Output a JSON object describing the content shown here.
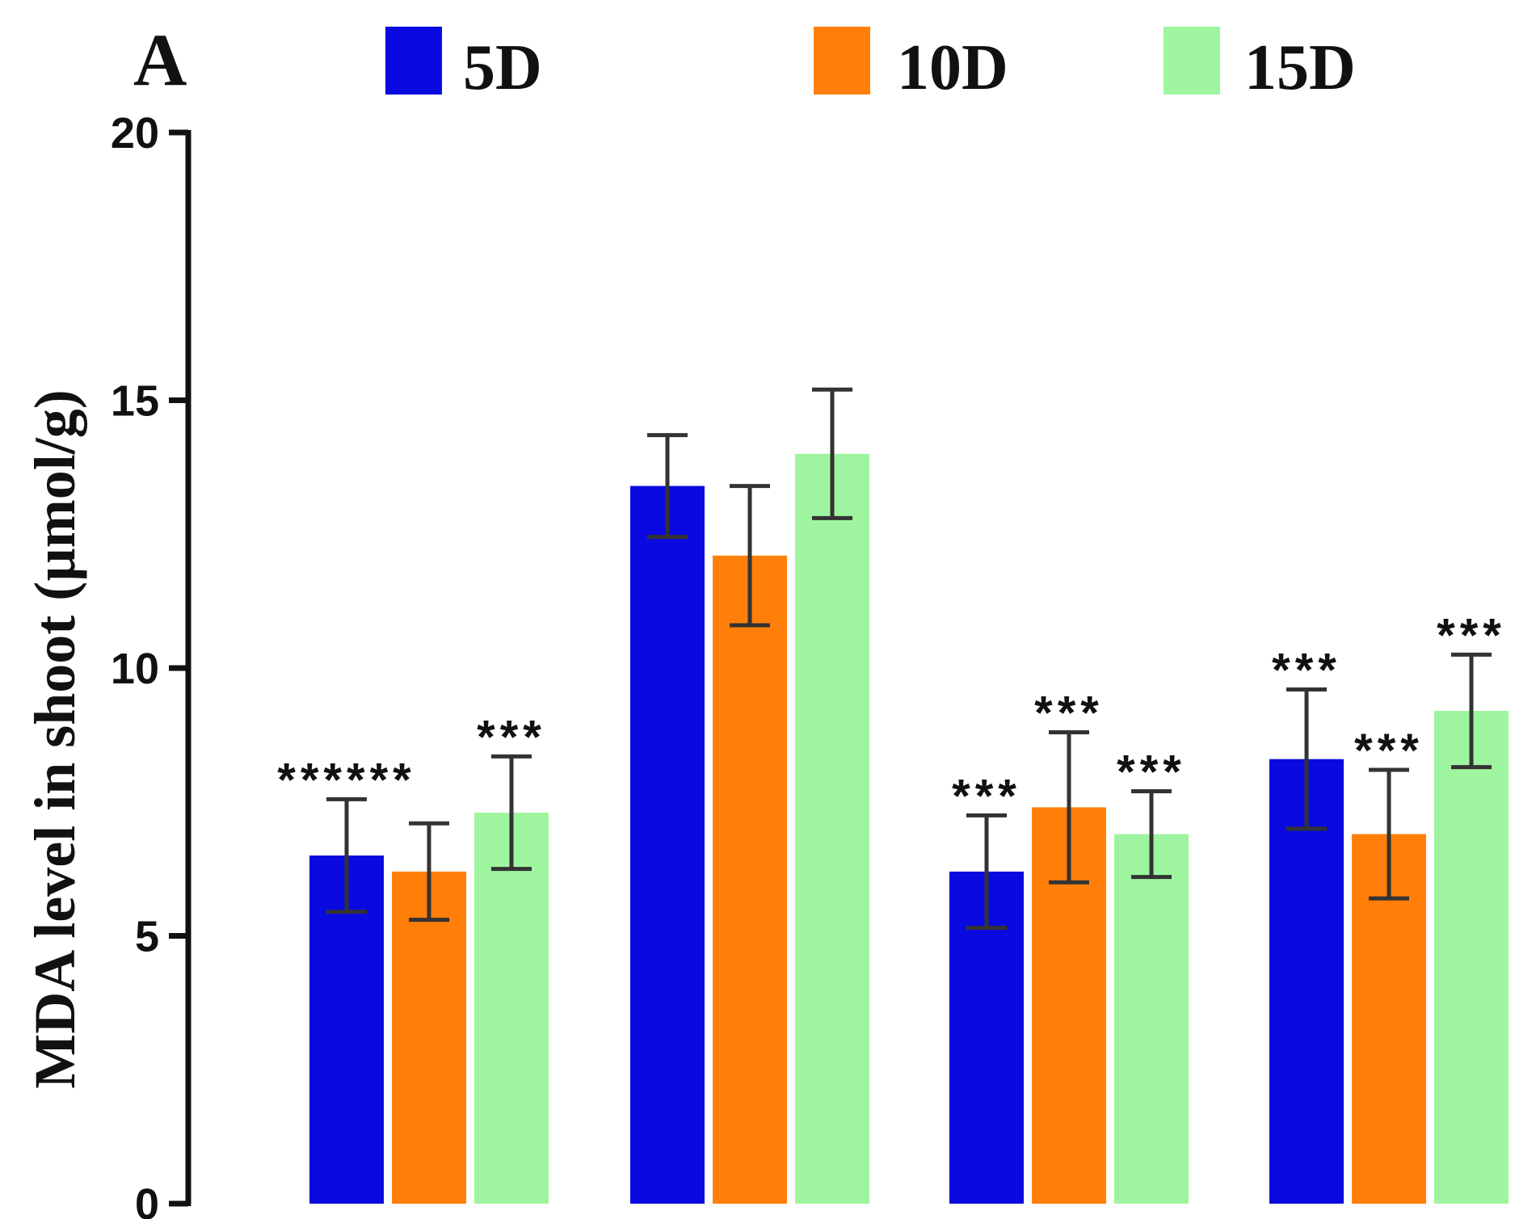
{
  "panel_label": "A",
  "chart_data": {
    "type": "bar",
    "title": "",
    "xlabel": "",
    "ylabel": "MDA level in shoot (µmol/g)",
    "ylim": [
      0,
      20
    ],
    "yticks": [
      0,
      5,
      10,
      15,
      20
    ],
    "ytick_labels": [
      "0",
      "5",
      "10",
      "15",
      "20"
    ],
    "categories": [
      "",
      "",
      "",
      ""
    ],
    "legend_position": "top",
    "series": [
      {
        "name": "5D",
        "color": "#0a0ae0",
        "values": [
          6.5,
          13.4,
          6.2,
          8.3
        ],
        "errors": [
          1.05,
          0.95,
          1.05,
          1.3
        ],
        "annotations": [
          "******",
          "",
          "***",
          "***"
        ]
      },
      {
        "name": "10D",
        "color": "#ff7f0a",
        "values": [
          6.2,
          12.1,
          7.4,
          6.9
        ],
        "errors": [
          0.9,
          1.3,
          1.4,
          1.2
        ],
        "annotations": [
          "",
          "",
          "***",
          "***"
        ]
      },
      {
        "name": "15D",
        "color": "#9ff59f",
        "values": [
          7.3,
          14.0,
          6.9,
          9.2
        ],
        "errors": [
          1.05,
          1.2,
          0.8,
          1.05
        ],
        "annotations": [
          "***",
          "",
          "***",
          "***"
        ]
      }
    ]
  }
}
